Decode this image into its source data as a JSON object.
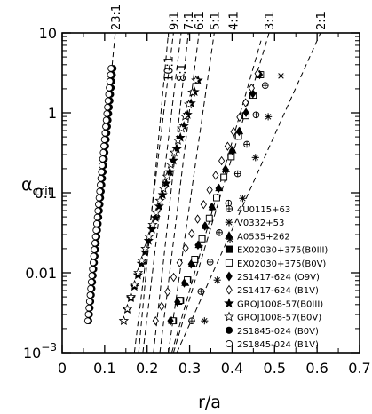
{
  "chart_data": {
    "type": "scatter",
    "xlabel": "r/a",
    "ylabel": "α",
    "ylabel_sub": "crit",
    "xlim": [
      0,
      0.7
    ],
    "ylim": [
      0.001,
      10
    ],
    "yscale": "log",
    "grid": false,
    "legend_position": "bottom-right",
    "x_ticks": [
      "0",
      "0.1",
      "0.2",
      "0.3",
      "0.4",
      "0.5",
      "0.6",
      "0.7"
    ],
    "y_ticks": [
      {
        "value": 10,
        "label": "10"
      },
      {
        "value": 1,
        "label": "1"
      },
      {
        "value": 0.1,
        "label": "0.1"
      },
      {
        "value": 0.01,
        "label": "0.01"
      }
    ],
    "y_tick_exp": {
      "value": 0.001,
      "base": "10",
      "exp": "−3"
    },
    "resonances": [
      {
        "label": "23:1",
        "x": 0.125,
        "side": "top"
      },
      {
        "label": "9:1",
        "x": 0.262,
        "side": "top"
      },
      {
        "label": "7:1",
        "x": 0.297,
        "side": "top"
      },
      {
        "label": "6:1",
        "x": 0.322,
        "side": "top"
      },
      {
        "label": "5:1",
        "x": 0.358,
        "side": "top"
      },
      {
        "label": "4:1",
        "x": 0.402,
        "side": "top"
      },
      {
        "label": "3:1",
        "x": 0.487,
        "side": "top"
      },
      {
        "label": "2:1",
        "x": 0.608,
        "side": "top"
      },
      {
        "label": "10:1",
        "x": 0.25,
        "side": "inside"
      },
      {
        "label": "8:1",
        "x": 0.28,
        "side": "inside"
      }
    ],
    "series": [
      {
        "name": "4U0115+63",
        "marker": "circle-plus",
        "r0": 0.305,
        "r1": 0.478,
        "c": 2.2,
        "n": 9
      },
      {
        "name": "V0332+53",
        "marker": "asterisk",
        "r0": 0.335,
        "r1": 0.515,
        "c": 2.9,
        "n": 7
      },
      {
        "name": "A0535+262",
        "marker": "triangle-filled",
        "r0": 0.258,
        "r1": 0.465,
        "c": 3.0,
        "n": 14
      },
      {
        "name": "EX02030+375(B0III)",
        "marker": "square-filled",
        "r0": 0.262,
        "r1": 0.465,
        "c": 3.0,
        "n": 13
      },
      {
        "name": "EX02030+375(B0V)",
        "marker": "square-open",
        "r0": 0.26,
        "r1": 0.467,
        "c": 3.0,
        "n": 13
      },
      {
        "name": "2S1417-624 (O9V)",
        "marker": "diamond-filled",
        "r0": 0.255,
        "r1": 0.465,
        "c": 3.0,
        "n": 14
      },
      {
        "name": "2S1417-624 (B1V)",
        "marker": "diamond-open",
        "r0": 0.22,
        "r1": 0.46,
        "c": 3.1,
        "n": 18
      },
      {
        "name": "GROJ1008-57(B0III)",
        "marker": "star-filled",
        "r0": 0.145,
        "r1": 0.32,
        "c": 2.55,
        "n": 22
      },
      {
        "name": "GROJ1008-57(B0V)",
        "marker": "star-open",
        "r0": 0.145,
        "r1": 0.315,
        "c": 2.55,
        "n": 21
      },
      {
        "name": "2S1845-024 (B0V)",
        "marker": "circle-filled",
        "r0": 0.063,
        "r1": 0.12,
        "c": 3.6,
        "n": 40
      },
      {
        "name": "2S1845-024 (B1V)",
        "marker": "circle-open",
        "r0": 0.06,
        "r1": 0.115,
        "c": 3.6,
        "n": 40
      }
    ]
  }
}
